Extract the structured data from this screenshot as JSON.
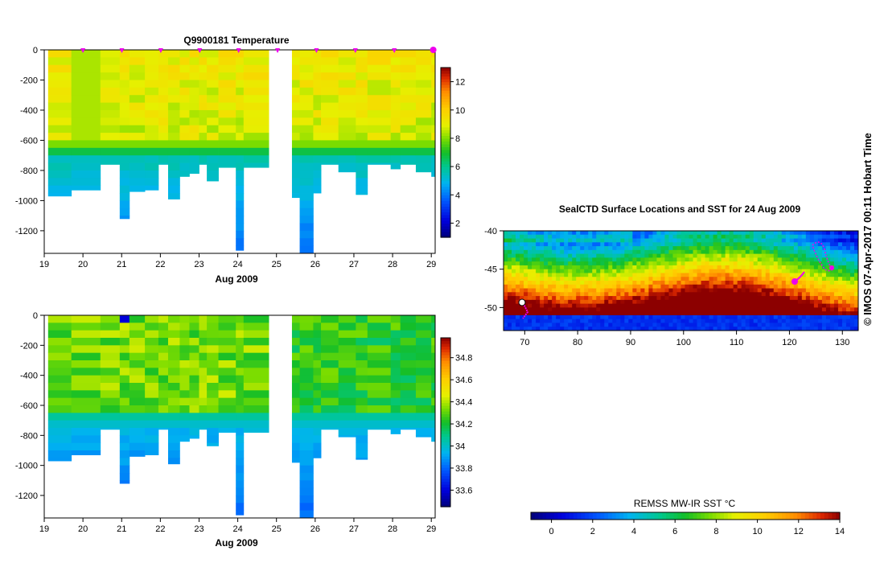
{
  "colors": {
    "background": "#ffffff",
    "axis": "#000000",
    "marker": "#ee00ee",
    "no_data": "#ffffff"
  },
  "chart_data": [
    {
      "id": "temperature",
      "type": "heatmap",
      "title": "Q9900181  Temperature",
      "xlabel": "Aug 2009",
      "ylabel": "",
      "xlim": [
        19,
        29.1
      ],
      "ylim": [
        -1350,
        0
      ],
      "x_ticks": [
        "19",
        "20",
        "21",
        "22",
        "23",
        "24",
        "25",
        "26",
        "27",
        "28",
        "29"
      ],
      "y_ticks": [
        "0",
        "-200",
        "-400",
        "-600",
        "-800",
        "-1000",
        "-1200"
      ],
      "colorbar": {
        "label": "",
        "range": [
          1,
          13
        ],
        "ticks": [
          "2",
          "4",
          "6",
          "8",
          "10",
          "12"
        ]
      },
      "profile_markers_day": [
        20.0,
        21.0,
        22.0,
        23.0,
        24.0,
        25.0,
        26.0,
        27.0,
        28.0,
        29.0
      ],
      "profiles": [
        {
          "x0": 19.1,
          "x1": 19.7,
          "max_depth": 970
        },
        {
          "x0": 19.7,
          "x1": 20.45,
          "max_depth": 930
        },
        {
          "x0": 20.45,
          "x1": 20.95,
          "max_depth": 760
        },
        {
          "x0": 20.95,
          "x1": 21.2,
          "max_depth": 1120
        },
        {
          "x0": 21.2,
          "x1": 21.6,
          "max_depth": 940
        },
        {
          "x0": 21.6,
          "x1": 21.95,
          "max_depth": 930
        },
        {
          "x0": 21.95,
          "x1": 22.2,
          "max_depth": 760
        },
        {
          "x0": 22.2,
          "x1": 22.5,
          "max_depth": 990
        },
        {
          "x0": 22.5,
          "x1": 22.75,
          "max_depth": 840
        },
        {
          "x0": 22.75,
          "x1": 23.0,
          "max_depth": 820
        },
        {
          "x0": 23.0,
          "x1": 23.2,
          "max_depth": 760
        },
        {
          "x0": 23.2,
          "x1": 23.5,
          "max_depth": 870
        },
        {
          "x0": 23.5,
          "x1": 23.95,
          "max_depth": 780
        },
        {
          "x0": 23.95,
          "x1": 24.15,
          "max_depth": 1330
        },
        {
          "x0": 24.15,
          "x1": 24.8,
          "max_depth": 780
        },
        {
          "x0": 25.4,
          "x1": 25.6,
          "max_depth": 980
        },
        {
          "x0": 25.6,
          "x1": 25.95,
          "max_depth": 1350
        },
        {
          "x0": 25.95,
          "x1": 26.15,
          "max_depth": 950
        },
        {
          "x0": 26.15,
          "x1": 26.6,
          "max_depth": 760
        },
        {
          "x0": 26.6,
          "x1": 27.05,
          "max_depth": 810
        },
        {
          "x0": 27.05,
          "x1": 27.35,
          "max_depth": 960
        },
        {
          "x0": 27.35,
          "x1": 27.95,
          "max_depth": 760
        },
        {
          "x0": 27.95,
          "x1": 28.2,
          "max_depth": 790
        },
        {
          "x0": 28.2,
          "x1": 28.6,
          "max_depth": 760
        },
        {
          "x0": 28.6,
          "x1": 29.0,
          "max_depth": 810
        },
        {
          "x0": 29.0,
          "x1": 29.1,
          "max_depth": 840
        }
      ]
    },
    {
      "id": "salinity",
      "type": "heatmap",
      "title": "",
      "xlabel": "Aug 2009",
      "ylabel": "",
      "xlim": [
        19,
        29.1
      ],
      "ylim": [
        -1350,
        0
      ],
      "x_ticks": [
        "19",
        "20",
        "21",
        "22",
        "23",
        "24",
        "25",
        "26",
        "27",
        "28",
        "29"
      ],
      "y_ticks": [
        "0",
        "-200",
        "-400",
        "-600",
        "-800",
        "-1000",
        "-1200"
      ],
      "colorbar": {
        "label": "",
        "range": [
          33.45,
          34.98
        ],
        "ticks": [
          "33.6",
          "33.8",
          "34",
          "34.2",
          "34.4",
          "34.6",
          "34.8"
        ]
      }
    },
    {
      "id": "sst_map",
      "type": "heatmap",
      "title": "SealCTD Surface Locations and SST for 24 Aug 2009",
      "xlabel": "",
      "ylabel": "",
      "xlim": [
        66,
        133
      ],
      "ylim": [
        -53,
        -40
      ],
      "x_ticks": [
        "70",
        "80",
        "90",
        "100",
        "110",
        "120",
        "130"
      ],
      "y_ticks": [
        "-40",
        "-45",
        "-50"
      ],
      "colorbar": {
        "label": "REMSS MW-IR SST °C",
        "range": [
          -1,
          14
        ],
        "ticks": [
          "0",
          "2",
          "4",
          "6",
          "8",
          "10",
          "12",
          "14"
        ]
      }
    }
  ],
  "side_label": "© IMOS 07-Apr-2017 00:11 Hobart Time"
}
